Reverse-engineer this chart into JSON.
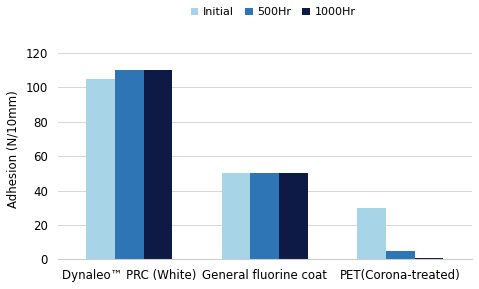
{
  "categories": [
    "Dynaleo™ PRC (White)",
    "General fluorine coat",
    "PET(Corona-treated)"
  ],
  "series": [
    {
      "label": "Initial",
      "color": "#a8d4e8",
      "values": [
        105,
        50,
        30
      ]
    },
    {
      "label": "500Hr",
      "color": "#2e75b6",
      "values": [
        110,
        50,
        5
      ]
    },
    {
      "label": "1000Hr",
      "color": "#0d1a45",
      "values": [
        110,
        50,
        1
      ]
    }
  ],
  "ylabel": "Adhesion (N/10mm)",
  "ylim": [
    0,
    128
  ],
  "yticks": [
    0,
    20,
    40,
    60,
    80,
    100,
    120
  ],
  "bar_width": 0.18,
  "group_positions": [
    0.25,
    1.1,
    1.95
  ],
  "background_color": "#ffffff",
  "legend_fontsize": 8.0,
  "axis_fontsize": 8.5,
  "tick_fontsize": 8.5,
  "ylabel_fontsize": 8.5
}
